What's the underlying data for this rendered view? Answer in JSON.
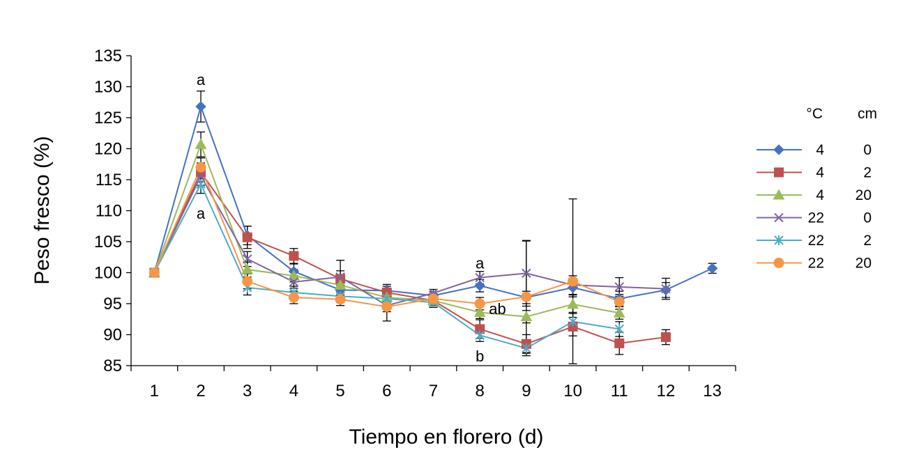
{
  "chart_data": {
    "type": "line",
    "xlabel": "Tiempo en florero (d)",
    "ylabel": "Peso fresco (%)",
    "x": [
      1,
      2,
      3,
      4,
      5,
      6,
      7,
      8,
      9,
      10,
      11,
      12,
      13
    ],
    "ylim": [
      85,
      135
    ],
    "yticks": [
      85,
      90,
      95,
      100,
      105,
      110,
      115,
      120,
      125,
      130,
      135
    ],
    "grid": false,
    "legend_placement": "right",
    "legend_header": {
      "col1": "°C",
      "col2": "cm"
    },
    "series": [
      {
        "temp": "4",
        "cm": "0",
        "color": "#4472C4",
        "marker": "diamond",
        "x": [
          1,
          2,
          3,
          4,
          5,
          6,
          7,
          8,
          9,
          10,
          11,
          12,
          13
        ],
        "values": [
          100,
          126.8,
          106,
          100.2,
          97.2,
          97.1,
          96.3,
          97.9,
          96.0,
          97.6,
          95.8,
          97.2,
          100.7
        ],
        "errors": [
          0,
          2.5,
          1.5,
          1.2,
          0.8,
          1.0,
          0.6,
          1.0,
          1.0,
          1.5,
          1.2,
          1.2,
          0.8
        ]
      },
      {
        "temp": "4",
        "cm": "2",
        "color": "#C0504D",
        "marker": "square",
        "x": [
          1,
          2,
          3,
          4,
          5,
          6,
          7,
          8,
          9,
          10,
          11,
          12
        ],
        "values": [
          100,
          116.2,
          105.7,
          102.7,
          99.0,
          96.8,
          95.5,
          90.9,
          88.5,
          91.3,
          88.6,
          89.6
        ],
        "errors": [
          0,
          1.5,
          1.8,
          1.2,
          3.0,
          1.0,
          0.8,
          1.5,
          1.5,
          1.5,
          1.8,
          1.2
        ]
      },
      {
        "temp": "4",
        "cm": "20",
        "color": "#9BBB59",
        "marker": "triangle",
        "x": [
          1,
          2,
          3,
          4,
          5,
          6,
          7,
          8,
          9,
          10,
          11
        ],
        "values": [
          100,
          120.7,
          100.5,
          99.5,
          98.0,
          96.0,
          95.5,
          93.6,
          92.9,
          94.9,
          93.5
        ],
        "errors": [
          0,
          2.0,
          1.2,
          1.0,
          1.0,
          1.0,
          0.8,
          1.0,
          1.0,
          1.5,
          1.0
        ]
      },
      {
        "temp": "22",
        "cm": "0",
        "color": "#8064A2",
        "marker": "x",
        "x": [
          1,
          2,
          3,
          4,
          5,
          6,
          7,
          8,
          9,
          10,
          11,
          12
        ],
        "values": [
          100,
          115.6,
          102.2,
          98.5,
          99.3,
          94.7,
          96.7,
          99.2,
          99.9,
          98.0,
          97.7,
          97.4
        ],
        "errors": [
          0,
          1.5,
          1.2,
          1.0,
          1.0,
          1.0,
          0.6,
          1.0,
          5.3,
          1.5,
          1.5,
          1.7
        ]
      },
      {
        "temp": "22",
        "cm": "2",
        "color": "#4BACC6",
        "marker": "asterisk",
        "x": [
          1,
          2,
          3,
          4,
          5,
          6,
          7,
          8,
          9,
          10,
          11
        ],
        "values": [
          100,
          114.3,
          97.6,
          96.8,
          96.2,
          95.8,
          95.2,
          89.9,
          87.8,
          92.1,
          90.9
        ],
        "errors": [
          0,
          1.5,
          1.2,
          1.0,
          1.0,
          1.0,
          0.8,
          1.0,
          1.2,
          1.5,
          1.2
        ]
      },
      {
        "temp": "22",
        "cm": "20",
        "color": "#F79646",
        "marker": "circle",
        "x": [
          1,
          2,
          3,
          4,
          5,
          6,
          7,
          8,
          9,
          10,
          11
        ],
        "values": [
          100,
          117.0,
          98.6,
          96.0,
          95.7,
          94.5,
          95.8,
          95.0,
          96.1,
          98.6,
          95.3
        ],
        "errors": [
          0,
          1.5,
          1.2,
          1.0,
          1.0,
          2.3,
          0.8,
          1.0,
          9.0,
          13.3,
          1.2
        ]
      }
    ],
    "annotations": [
      {
        "text": "a",
        "x": 2,
        "y": 131.2
      },
      {
        "text": "a",
        "x": 2,
        "y": 109.6
      },
      {
        "text": "a",
        "x": 8,
        "y": 101.6
      },
      {
        "text": "ab",
        "x": 8.38,
        "y": 94.2
      },
      {
        "text": "b",
        "x": 8,
        "y": 86.6
      }
    ]
  }
}
